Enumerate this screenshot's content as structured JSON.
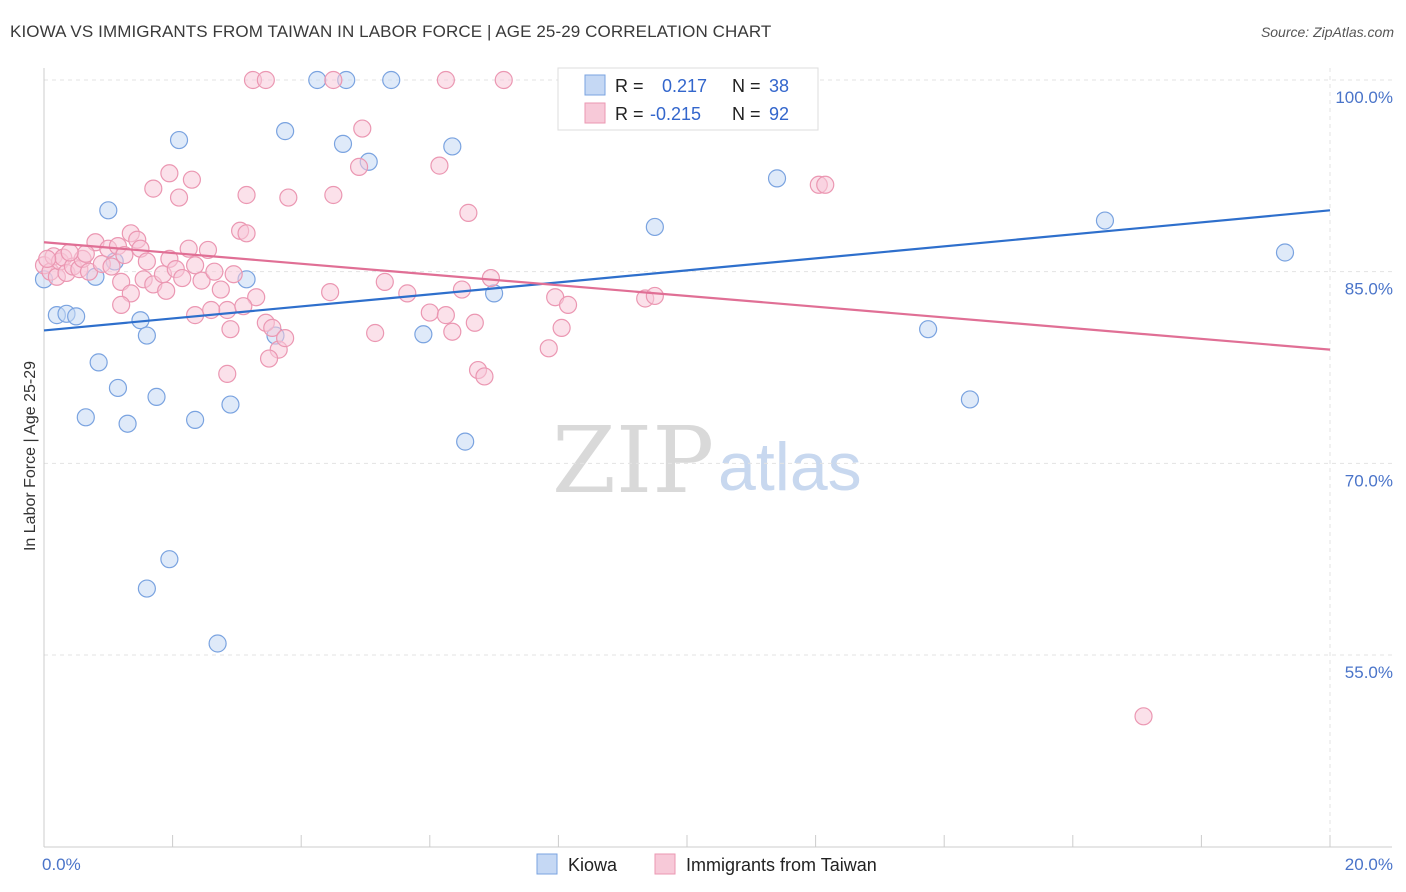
{
  "title": "KIOWA VS IMMIGRANTS FROM TAIWAN IN LABOR FORCE | AGE 25-29 CORRELATION CHART",
  "source": "Source: ZipAtlas.com",
  "watermark": {
    "zip": "ZIP",
    "atlas": "atlas"
  },
  "chart_data": {
    "type": "scatter",
    "title": "KIOWA VS IMMIGRANTS FROM TAIWAN IN LABOR FORCE | AGE 25-29 CORRELATION CHART",
    "xlabel": "",
    "ylabel": "In Labor Force | Age 25-29",
    "xlim": [
      0,
      20
    ],
    "ylim": [
      40,
      101.5
    ],
    "x_tick_labels": [
      {
        "value": 0,
        "label": "0.0%"
      },
      {
        "value": 20,
        "label": "20.0%"
      }
    ],
    "y_tick_labels": [
      {
        "value": 100,
        "label": "100.0%"
      },
      {
        "value": 85,
        "label": "85.0%"
      },
      {
        "value": 70,
        "label": "70.0%"
      },
      {
        "value": 55,
        "label": "55.0%"
      }
    ],
    "grid": true,
    "legend": {
      "placement": "top-center",
      "rows": [
        {
          "r_label": "R =",
          "r_value": "0.217",
          "n_label": "N =",
          "n_value": "38"
        },
        {
          "r_label": "R =",
          "r_value": "-0.215",
          "n_label": "N =",
          "n_value": "92"
        }
      ]
    },
    "series": [
      {
        "name": "Kiowa",
        "color": "#7aa3e0",
        "fill": "#c5d8f4",
        "line_color": "#2e6fcc",
        "trend": {
          "x": [
            0,
            20
          ],
          "y": [
            80.4,
            89.8
          ]
        },
        "points": [
          [
            0.0,
            84.4
          ],
          [
            0.2,
            81.6
          ],
          [
            0.35,
            81.7
          ],
          [
            0.5,
            81.5
          ],
          [
            0.8,
            84.6
          ],
          [
            1.0,
            89.8
          ],
          [
            1.5,
            81.2
          ],
          [
            1.6,
            80.0
          ],
          [
            0.85,
            77.9
          ],
          [
            1.15,
            75.9
          ],
          [
            0.65,
            73.6
          ],
          [
            1.75,
            75.2
          ],
          [
            1.3,
            73.1
          ],
          [
            2.35,
            73.4
          ],
          [
            2.9,
            74.6
          ],
          [
            1.95,
            62.5
          ],
          [
            1.6,
            60.2
          ],
          [
            2.7,
            55.9
          ],
          [
            2.1,
            95.3
          ],
          [
            3.75,
            96.0
          ],
          [
            4.65,
            95.0
          ],
          [
            5.05,
            93.6
          ],
          [
            6.35,
            94.8
          ],
          [
            3.15,
            84.4
          ],
          [
            3.6,
            80.0
          ],
          [
            4.25,
            100.0
          ],
          [
            4.7,
            100.0
          ],
          [
            5.4,
            100.0
          ],
          [
            7.0,
            83.3
          ],
          [
            5.9,
            80.1
          ],
          [
            6.55,
            71.7
          ],
          [
            9.5,
            88.5
          ],
          [
            11.4,
            92.3
          ],
          [
            13.75,
            80.5
          ],
          [
            14.4,
            75.0
          ],
          [
            16.5,
            89.0
          ],
          [
            19.3,
            86.5
          ],
          [
            1.1,
            85.8
          ]
        ]
      },
      {
        "name": "Immigrants from Taiwan",
        "color": "#eb97b2",
        "fill": "#f7c9d8",
        "line_color": "#e06f95",
        "trend": {
          "x": [
            0,
            20
          ],
          "y": [
            87.3,
            78.9
          ]
        },
        "points": [
          [
            0.0,
            85.5
          ],
          [
            0.1,
            85.0
          ],
          [
            0.15,
            86.2
          ],
          [
            0.2,
            84.6
          ],
          [
            0.25,
            85.8
          ],
          [
            0.3,
            86.1
          ],
          [
            0.35,
            84.9
          ],
          [
            0.45,
            85.4
          ],
          [
            0.55,
            85.2
          ],
          [
            0.6,
            86.0
          ],
          [
            0.7,
            85.0
          ],
          [
            0.8,
            87.3
          ],
          [
            0.9,
            85.6
          ],
          [
            1.0,
            86.8
          ],
          [
            1.05,
            85.4
          ],
          [
            1.15,
            87.0
          ],
          [
            1.25,
            86.3
          ],
          [
            1.35,
            88.0
          ],
          [
            1.45,
            87.5
          ],
          [
            1.5,
            86.8
          ],
          [
            1.2,
            84.2
          ],
          [
            1.35,
            83.3
          ],
          [
            1.55,
            84.4
          ],
          [
            1.7,
            84.0
          ],
          [
            1.85,
            84.8
          ],
          [
            1.95,
            86.0
          ],
          [
            2.05,
            85.2
          ],
          [
            2.15,
            84.5
          ],
          [
            2.25,
            86.8
          ],
          [
            2.35,
            85.5
          ],
          [
            2.45,
            84.3
          ],
          [
            2.55,
            86.7
          ],
          [
            2.65,
            85.0
          ],
          [
            2.75,
            83.6
          ],
          [
            2.85,
            82.0
          ],
          [
            2.95,
            84.8
          ],
          [
            3.05,
            88.2
          ],
          [
            3.15,
            88.0
          ],
          [
            3.3,
            83.0
          ],
          [
            3.45,
            81.0
          ],
          [
            3.55,
            80.6
          ],
          [
            3.65,
            78.9
          ],
          [
            3.75,
            79.8
          ],
          [
            3.5,
            78.2
          ],
          [
            2.35,
            81.6
          ],
          [
            1.9,
            83.5
          ],
          [
            1.2,
            82.4
          ],
          [
            2.6,
            82.0
          ],
          [
            2.9,
            80.5
          ],
          [
            3.1,
            82.3
          ],
          [
            2.85,
            77.0
          ],
          [
            1.7,
            91.5
          ],
          [
            1.95,
            92.7
          ],
          [
            2.3,
            92.2
          ],
          [
            2.1,
            90.8
          ],
          [
            3.15,
            91.0
          ],
          [
            3.8,
            90.8
          ],
          [
            4.5,
            91.0
          ],
          [
            4.9,
            93.2
          ],
          [
            4.95,
            96.2
          ],
          [
            3.25,
            100.0
          ],
          [
            3.45,
            100.0
          ],
          [
            4.5,
            100.0
          ],
          [
            6.25,
            100.0
          ],
          [
            7.15,
            100.0
          ],
          [
            6.15,
            93.3
          ],
          [
            6.6,
            89.6
          ],
          [
            4.45,
            83.4
          ],
          [
            5.15,
            80.2
          ],
          [
            5.3,
            84.2
          ],
          [
            5.65,
            83.3
          ],
          [
            6.0,
            81.8
          ],
          [
            6.25,
            81.6
          ],
          [
            6.35,
            80.3
          ],
          [
            6.5,
            83.6
          ],
          [
            6.7,
            81.0
          ],
          [
            6.95,
            84.5
          ],
          [
            6.75,
            77.3
          ],
          [
            6.85,
            76.8
          ],
          [
            7.95,
            83.0
          ],
          [
            8.15,
            82.4
          ],
          [
            7.85,
            79.0
          ],
          [
            8.05,
            80.6
          ],
          [
            9.35,
            82.9
          ],
          [
            9.5,
            83.1
          ],
          [
            12.05,
            91.8
          ],
          [
            12.15,
            91.8
          ],
          [
            17.1,
            50.2
          ],
          [
            1.6,
            85.8
          ],
          [
            0.65,
            86.4
          ],
          [
            0.4,
            86.5
          ],
          [
            0.05,
            86.0
          ]
        ]
      }
    ]
  }
}
